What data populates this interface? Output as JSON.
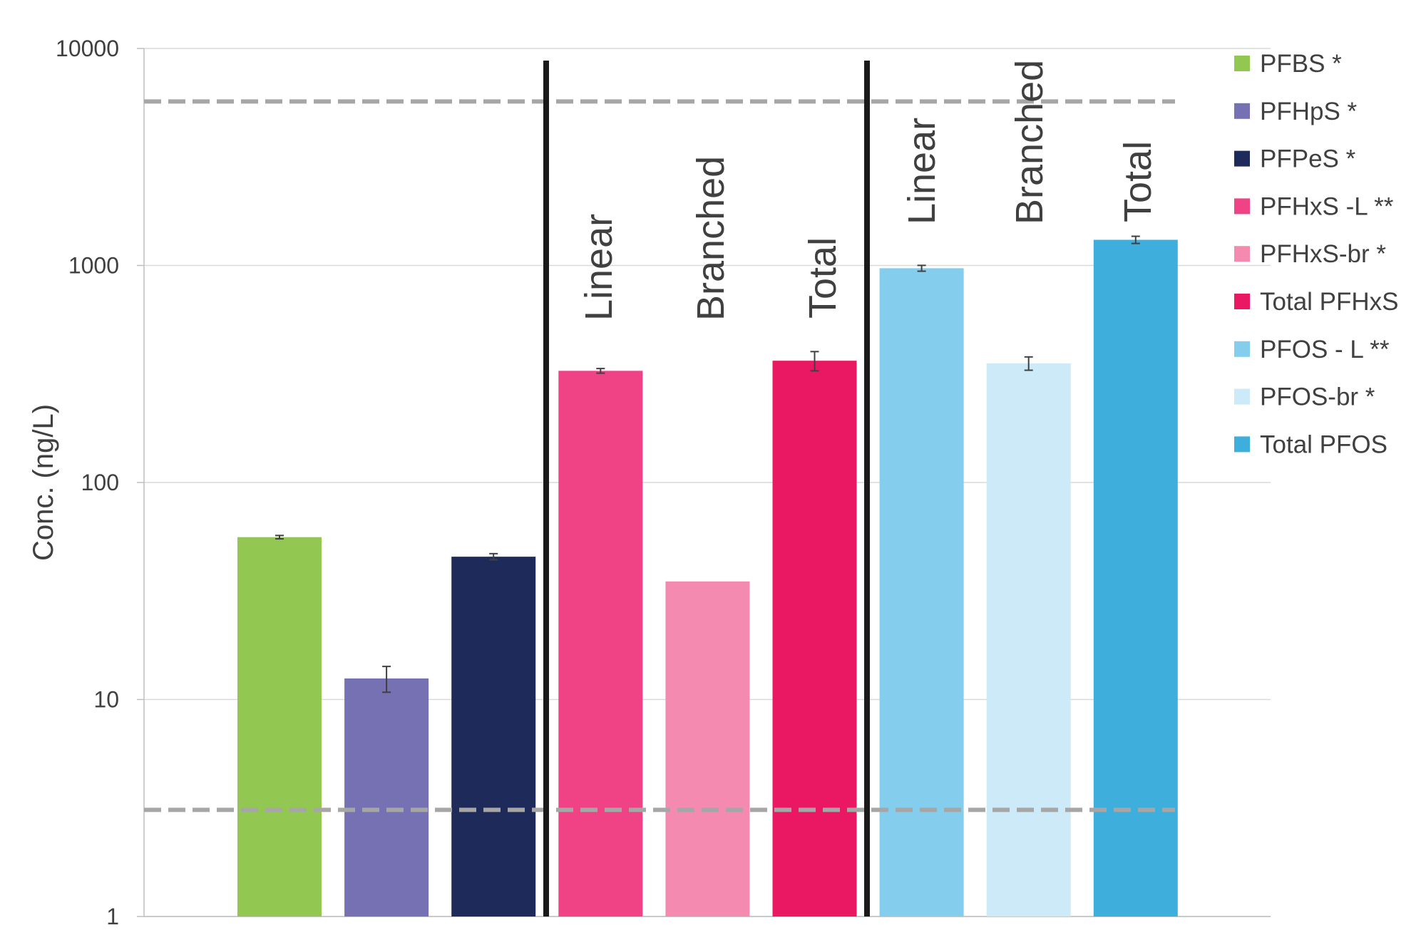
{
  "chart_data": {
    "type": "bar",
    "y_label": "Conc. (ng/L)",
    "log_y": true,
    "grid": true,
    "ylim": [
      1,
      10000
    ],
    "yticks": [
      1,
      10,
      100,
      1000,
      10000
    ],
    "series": [
      {
        "name": "PFBS *",
        "color": "#92c852",
        "values": [
          56
        ],
        "errors": [
          1
        ]
      },
      {
        "name": "PFHpS *",
        "color": "#7671b2",
        "values": [
          12.5
        ],
        "errors": [
          1.7
        ]
      },
      {
        "name": "PFPeS *",
        "color": "#1e2a5a",
        "values": [
          45.5
        ],
        "errors": [
          1.5
        ]
      },
      {
        "name": "PFHxS -L **",
        "color": "#ef4386",
        "values": [
          327
        ],
        "errors": [
          8
        ]
      },
      {
        "name": "PFHxS-br *",
        "color": "#f48aaf",
        "values": [
          35
        ],
        "errors": [
          null
        ]
      },
      {
        "name": "Total PFHxS",
        "color": "#ea1863",
        "values": [
          364
        ],
        "errors": [
          37
        ]
      },
      {
        "name": "PFOS - L **",
        "color": "#84cdec",
        "values": [
          971
        ],
        "errors": [
          30
        ]
      },
      {
        "name": "PFOS-br *",
        "color": "#cdeaf8",
        "values": [
          354
        ],
        "errors": [
          25
        ]
      },
      {
        "name": "Total PFOS",
        "color": "#3eaedd",
        "values": [
          1313
        ],
        "errors": [
          50
        ]
      }
    ],
    "reference_lines": [
      5700,
      3.1
    ],
    "annotations": [
      "Linear",
      "Branched",
      "Total",
      "Linear",
      "Branched",
      "Total"
    ]
  }
}
